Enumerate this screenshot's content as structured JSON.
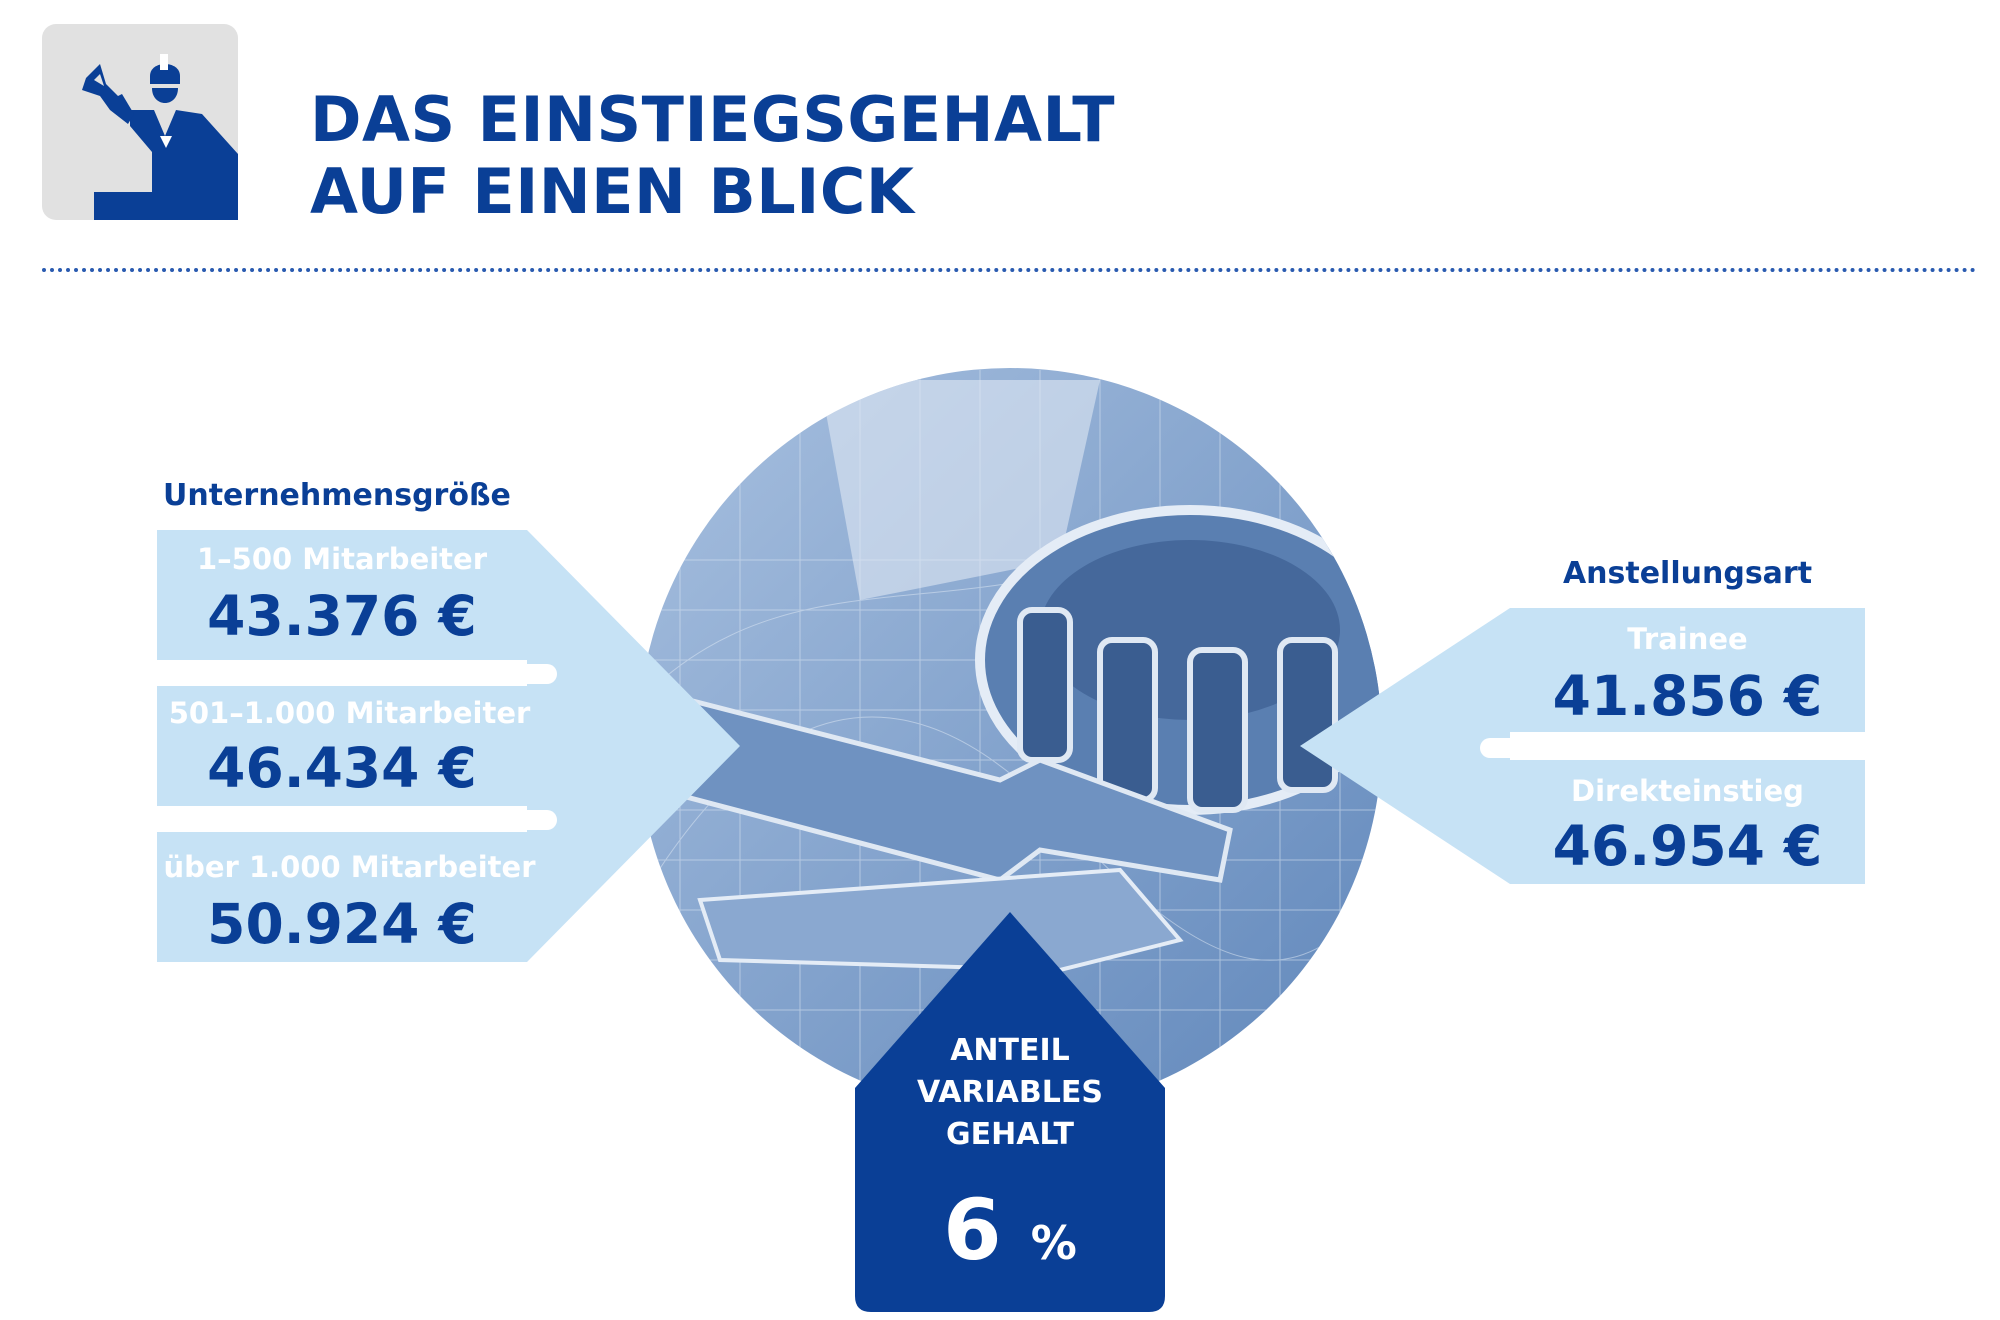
{
  "title": {
    "line1": "DAS EINSTIEGSGEHALT",
    "line2": "AUF EINEN BLICK"
  },
  "icon": "worker-with-wrench-icon",
  "colors": {
    "primary": "#0a3f96",
    "light_box": "#c6e2f5",
    "circle_tint": "#7b9fcb"
  },
  "company_size": {
    "heading": "Unternehmensgröße",
    "items": [
      {
        "label": "1–500 Mitarbeiter",
        "value": "43.376 €"
      },
      {
        "label": "501–1.000 Mitarbeiter",
        "value": "46.434 €"
      },
      {
        "label": "über 1.000 Mitarbeiter",
        "value": "50.924 €"
      }
    ]
  },
  "employment_type": {
    "heading": "Anstellungsart",
    "items": [
      {
        "label": "Trainee",
        "value": "41.856 €"
      },
      {
        "label": "Direkteinstieg",
        "value": "46.954 €"
      }
    ]
  },
  "variable_pay": {
    "line1": "ANTEIL",
    "line2": "VARIABLES",
    "line3": "GEHALT",
    "number": "6",
    "unit": "%"
  }
}
